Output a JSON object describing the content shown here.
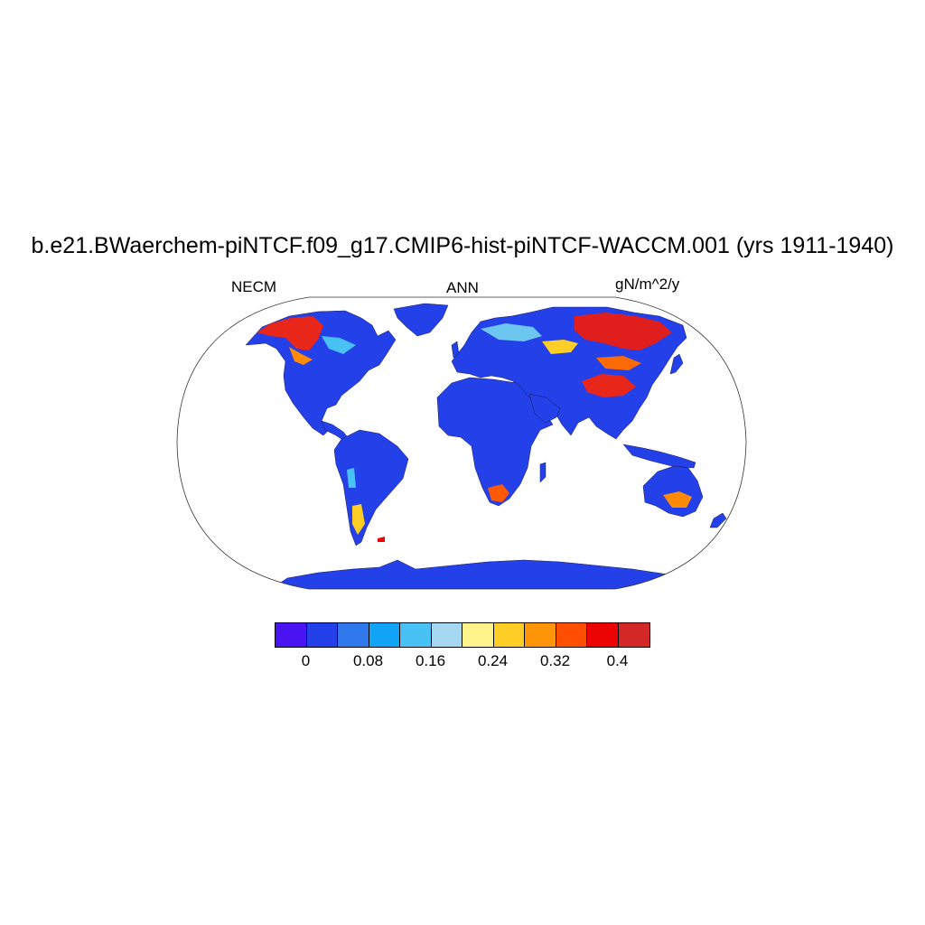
{
  "figure": {
    "title": "b.e21.BWaerchem-piNTCF.f09_g17.CMIP6-hist-piNTCF-WACCM.001 (yrs 1911-1940)",
    "left_label": "NECM",
    "center_label": "ANN",
    "right_label": "gN/m^2/y"
  },
  "map": {
    "projection": "Robinson",
    "ocean_color": "#ffffff",
    "land_base_color": "#2440e8",
    "high_value_regions": [
      "northwest North America",
      "central / eastern Siberia",
      "Tibetan Plateau",
      "southern Africa",
      "southeastern Australia",
      "southern South America"
    ]
  },
  "colorbar": {
    "colors": [
      "#4a14f2",
      "#2440e8",
      "#2e78ec",
      "#12a4f6",
      "#48c2f4",
      "#a6d8f2",
      "#fff48c",
      "#fece26",
      "#fe9408",
      "#fe4e02",
      "#ec0404",
      "#d22828"
    ],
    "labels": [
      "0",
      "0.08",
      "0.16",
      "0.24",
      "0.32",
      "0.4"
    ]
  }
}
